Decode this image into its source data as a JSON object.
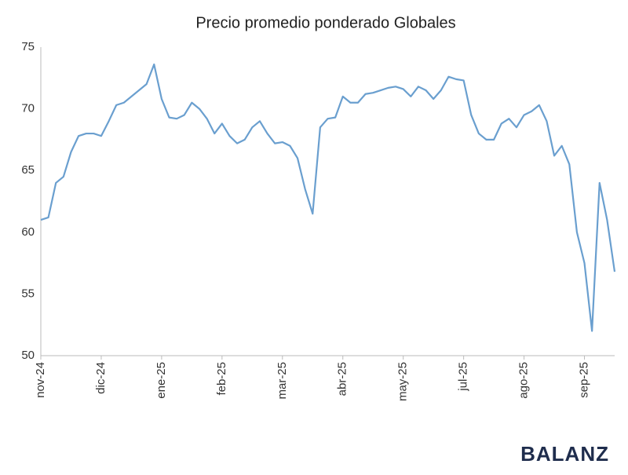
{
  "chart_data": {
    "type": "line",
    "title": "Precio promedio ponderado Globales",
    "categories": [
      "nov-24",
      null,
      null,
      null,
      null,
      null,
      null,
      null,
      "dic-24",
      null,
      null,
      null,
      null,
      null,
      null,
      null,
      "ene-25",
      null,
      null,
      null,
      null,
      null,
      null,
      null,
      "feb-25",
      null,
      null,
      null,
      null,
      null,
      null,
      null,
      "mar-25",
      null,
      null,
      null,
      null,
      null,
      null,
      null,
      "abr-25",
      null,
      null,
      null,
      null,
      null,
      null,
      null,
      "may-25",
      null,
      null,
      null,
      null,
      null,
      null,
      null,
      "jul-25",
      null,
      null,
      null,
      null,
      null,
      null,
      null,
      "ago-25",
      null,
      null,
      null,
      null,
      null,
      null,
      null,
      "sep-25",
      null,
      null,
      null,
      null
    ],
    "series": [
      {
        "name": "Globales",
        "color": "#6a9fcf",
        "values": [
          61,
          61.2,
          64,
          64.5,
          66.5,
          67.8,
          68,
          68,
          67.8,
          69,
          70.3,
          70.5,
          71,
          71.5,
          72,
          73.6,
          70.8,
          69.3,
          69.2,
          69.5,
          70.5,
          70,
          69.2,
          68,
          68.8,
          67.8,
          67.2,
          67.5,
          68.5,
          69,
          68,
          67.2,
          67.3,
          67,
          66,
          63.5,
          61.5,
          68.5,
          69.2,
          69.3,
          71,
          70.5,
          70.5,
          71.2,
          71.3,
          71.5,
          71.7,
          71.8,
          71.6,
          71,
          71.8,
          71.5,
          70.8,
          71.5,
          72.6,
          72.4,
          72.3,
          69.5,
          68,
          67.5,
          67.5,
          68.8,
          69.2,
          68.5,
          69.5,
          69.8,
          70.3,
          69,
          66.2,
          67,
          65.5,
          60,
          57.5,
          52,
          64,
          61,
          56.8
        ]
      }
    ],
    "ylim": [
      50,
      75
    ],
    "yticks": [
      50,
      55,
      60,
      65,
      70,
      75
    ],
    "grid": false,
    "brand": "BALANZ"
  }
}
